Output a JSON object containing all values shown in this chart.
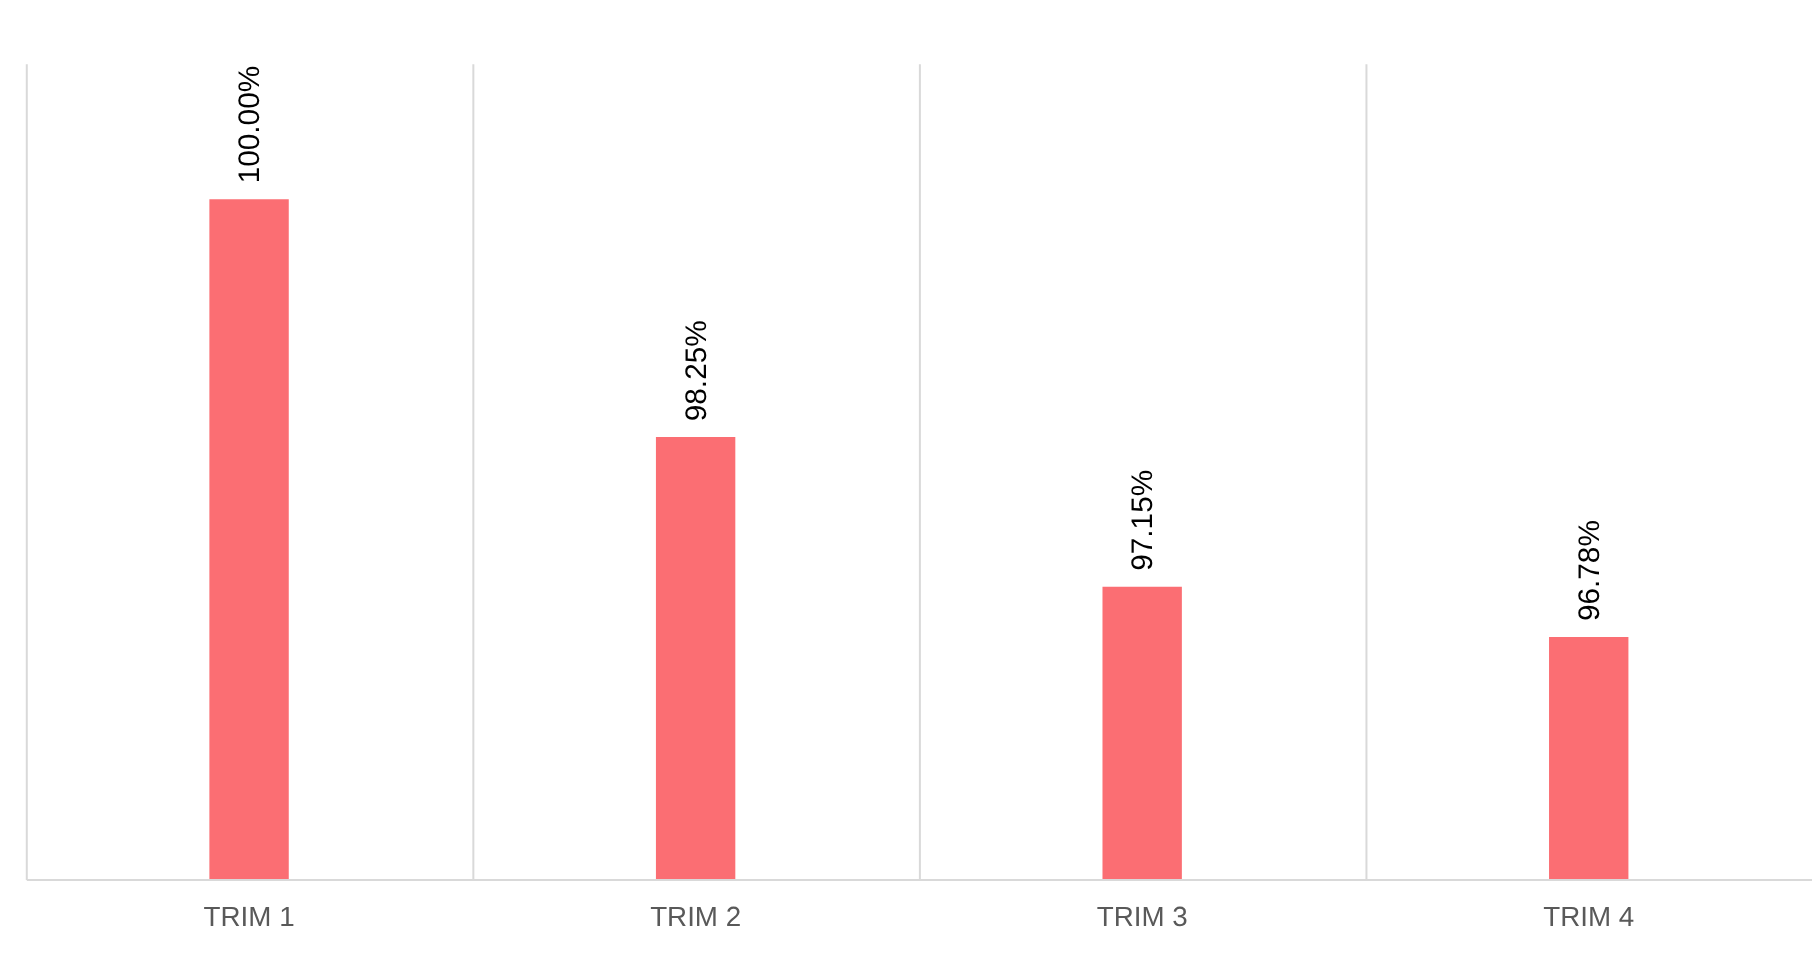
{
  "chart_data": {
    "type": "bar",
    "categories": [
      "TRIM 1",
      "TRIM 2",
      "TRIM 3",
      "TRIM 4"
    ],
    "values": [
      100.0,
      98.25,
      97.15,
      96.78
    ],
    "value_labels": [
      "100.00%",
      "98.25%",
      "97.15%",
      "96.78%"
    ],
    "color": "#fb6e73",
    "ylim": [
      95,
      101
    ],
    "tick_labels": "x",
    "grid": "x"
  }
}
